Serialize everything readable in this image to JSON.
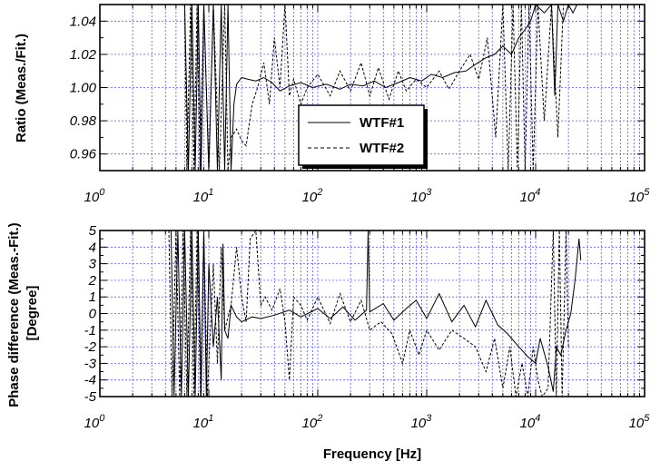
{
  "chart_data": [
    {
      "type": "line",
      "id": "ratio",
      "ylabel": "Ratio (Meas./Fit.)",
      "xlabel": "",
      "xscale": "log",
      "xlim": [
        1,
        100000
      ],
      "ylim": [
        0.95,
        1.05
      ],
      "yticks": [
        "0.96",
        "0.98",
        "1.00",
        "1.02",
        "1.04"
      ],
      "xticks": [
        {
          "base": "10",
          "exp": "0"
        },
        {
          "base": "10",
          "exp": "1"
        },
        {
          "base": "10",
          "exp": "2"
        },
        {
          "base": "10",
          "exp": "3"
        },
        {
          "base": "10",
          "exp": "4"
        },
        {
          "base": "10",
          "exp": "5"
        }
      ],
      "grid": true,
      "legend": {
        "placement": "bottom-center",
        "entries": [
          "WTF#1",
          "WTF#2"
        ]
      },
      "series": [
        {
          "name": "WTF#1",
          "style": "solid",
          "points": [
            [
              6,
              1.05
            ],
            [
              6.5,
              0.95
            ],
            [
              7,
              1.05
            ],
            [
              7.5,
              0.95
            ],
            [
              8,
              1.05
            ],
            [
              8.5,
              0.95
            ],
            [
              9,
              1.05
            ],
            [
              10,
              0.95
            ],
            [
              11,
              1.05
            ],
            [
              12,
              0.95
            ],
            [
              13,
              1.05
            ],
            [
              14,
              0.95
            ],
            [
              15,
              1.05
            ],
            [
              16,
              0.95
            ],
            [
              17,
              0.99
            ],
            [
              18,
              1.002
            ],
            [
              20,
              1.006
            ],
            [
              23,
              1.005
            ],
            [
              27,
              1.004
            ],
            [
              32,
              1.006
            ],
            [
              38,
              1.003
            ],
            [
              45,
              0.998
            ],
            [
              55,
              1.001
            ],
            [
              70,
              1.003
            ],
            [
              90,
              1.0
            ],
            [
              120,
              1.002
            ],
            [
              160,
              0.999
            ],
            [
              200,
              1.002
            ],
            [
              260,
              1.001
            ],
            [
              330,
              1.004
            ],
            [
              420,
              1.0
            ],
            [
              550,
              1.003
            ],
            [
              700,
              1.006
            ],
            [
              900,
              1.004
            ],
            [
              1100,
              1.008
            ],
            [
              1400,
              1.006
            ],
            [
              1800,
              1.009
            ],
            [
              2300,
              1.01
            ],
            [
              2800,
              1.014
            ],
            [
              3500,
              1.018
            ],
            [
              4200,
              1.02
            ],
            [
              5000,
              1.025
            ],
            [
              6000,
              1.02
            ],
            [
              7000,
              1.03
            ],
            [
              8000,
              1.035
            ],
            [
              9000,
              1.04
            ],
            [
              10000,
              1.05
            ],
            [
              12000,
              1.045
            ],
            [
              14000,
              1.05
            ],
            [
              15000,
              0.995
            ],
            [
              16000,
              1.05
            ],
            [
              18000,
              1.04
            ],
            [
              20000,
              1.05
            ],
            [
              22000,
              1.045
            ],
            [
              24000,
              1.05
            ]
          ]
        },
        {
          "name": "WTF#2",
          "style": "dashed",
          "points": [
            [
              6,
              1.05
            ],
            [
              6.3,
              0.95
            ],
            [
              6.8,
              1.05
            ],
            [
              7.3,
              0.95
            ],
            [
              7.8,
              1.05
            ],
            [
              8.3,
              0.95
            ],
            [
              9,
              1.05
            ],
            [
              10,
              0.95
            ],
            [
              11,
              1.05
            ],
            [
              12.5,
              0.95
            ],
            [
              14,
              1.05
            ],
            [
              15,
              0.95
            ],
            [
              16,
              0.97
            ],
            [
              18,
              0.975
            ],
            [
              20,
              0.968
            ],
            [
              22,
              0.965
            ],
            [
              25,
              0.99
            ],
            [
              28,
              1.0
            ],
            [
              32,
              1.015
            ],
            [
              36,
              0.99
            ],
            [
              40,
              1.03
            ],
            [
              45,
              1.0
            ],
            [
              50,
              1.05
            ],
            [
              55,
              0.995
            ],
            [
              60,
              1.005
            ],
            [
              70,
              0.99
            ],
            [
              80,
              1.0
            ],
            [
              100,
              1.008
            ],
            [
              130,
              0.995
            ],
            [
              160,
              1.01
            ],
            [
              200,
              0.998
            ],
            [
              250,
              1.015
            ],
            [
              300,
              0.995
            ],
            [
              360,
              1.012
            ],
            [
              450,
              0.993
            ],
            [
              550,
              1.01
            ],
            [
              650,
              0.998
            ],
            [
              800,
              1.005
            ],
            [
              1000,
              1.0
            ],
            [
              1300,
              1.01
            ],
            [
              1600,
              0.999
            ],
            [
              2000,
              1.01
            ],
            [
              2500,
              1.02
            ],
            [
              3000,
              1.005
            ],
            [
              3600,
              1.03
            ],
            [
              4300,
              0.97
            ],
            [
              5000,
              1.05
            ],
            [
              5600,
              0.95
            ],
            [
              6200,
              1.05
            ],
            [
              6800,
              0.95
            ],
            [
              7400,
              1.05
            ],
            [
              8000,
              0.95
            ],
            [
              8700,
              1.05
            ],
            [
              9500,
              0.95
            ],
            [
              10500,
              1.05
            ],
            [
              12000,
              0.98
            ],
            [
              14000,
              1.05
            ],
            [
              16000,
              0.97
            ],
            [
              18000,
              1.05
            ]
          ]
        }
      ]
    },
    {
      "type": "line",
      "id": "phase",
      "ylabel": "Phase difference (Meas.-Fit.) [Degree]",
      "xlabel": "Frequency [Hz]",
      "xscale": "log",
      "xlim": [
        1,
        100000
      ],
      "ylim": [
        -5,
        5
      ],
      "yticks": [
        "-5",
        "-4",
        "-3",
        "-2",
        "-1",
        "0",
        "1",
        "2",
        "3",
        "4",
        "5"
      ],
      "xticks": [
        {
          "base": "10",
          "exp": "0"
        },
        {
          "base": "10",
          "exp": "1"
        },
        {
          "base": "10",
          "exp": "2"
        },
        {
          "base": "10",
          "exp": "3"
        },
        {
          "base": "10",
          "exp": "4"
        },
        {
          "base": "10",
          "exp": "5"
        }
      ],
      "grid": true,
      "series": [
        {
          "name": "WTF#1",
          "style": "solid",
          "points": [
            [
              4.5,
              5
            ],
            [
              4.8,
              -5
            ],
            [
              5.2,
              5
            ],
            [
              5.6,
              -5
            ],
            [
              6,
              5
            ],
            [
              6.5,
              -5
            ],
            [
              7,
              5
            ],
            [
              7.5,
              -5
            ],
            [
              8,
              5
            ],
            [
              8.5,
              -5
            ],
            [
              9,
              5
            ],
            [
              9.5,
              -5
            ],
            [
              10,
              3
            ],
            [
              11,
              -2
            ],
            [
              12,
              1
            ],
            [
              13,
              -4
            ],
            [
              13.5,
              4.2
            ],
            [
              14,
              -1
            ],
            [
              15,
              -1.5
            ],
            [
              16,
              0.5
            ],
            [
              18,
              -0.2
            ],
            [
              20,
              -0.5
            ],
            [
              25,
              -0.2
            ],
            [
              30,
              -0.3
            ],
            [
              40,
              -0.1
            ],
            [
              55,
              0.2
            ],
            [
              70,
              -0.2
            ],
            [
              100,
              0.3
            ],
            [
              130,
              -0.3
            ],
            [
              170,
              0.4
            ],
            [
              220,
              -0.4
            ],
            [
              280,
              0.2
            ],
            [
              290,
              5
            ],
            [
              300,
              0.1
            ],
            [
              400,
              0.6
            ],
            [
              500,
              -0.4
            ],
            [
              650,
              0.3
            ],
            [
              800,
              0.8
            ],
            [
              1000,
              -0.3
            ],
            [
              1300,
              1.2
            ],
            [
              1700,
              -0.5
            ],
            [
              2200,
              0.5
            ],
            [
              2800,
              -0.8
            ],
            [
              3500,
              0.8
            ],
            [
              4500,
              -0.7
            ],
            [
              5500,
              -1.2
            ],
            [
              7000,
              -2
            ],
            [
              8500,
              -2.6
            ],
            [
              10000,
              -3
            ],
            [
              11000,
              -1.5
            ],
            [
              13000,
              -3.2
            ],
            [
              14500,
              -4.7
            ],
            [
              15500,
              -2
            ],
            [
              17000,
              -2.5
            ],
            [
              19000,
              -1
            ],
            [
              21000,
              0
            ],
            [
              23000,
              2
            ],
            [
              25000,
              4.5
            ],
            [
              26000,
              3.2
            ]
          ]
        },
        {
          "name": "WTF#2",
          "style": "dashed",
          "points": [
            [
              4.3,
              5
            ],
            [
              4.6,
              -5
            ],
            [
              5,
              5
            ],
            [
              5.4,
              -5
            ],
            [
              5.8,
              5
            ],
            [
              6.3,
              -5
            ],
            [
              6.8,
              5
            ],
            [
              7.3,
              -5
            ],
            [
              7.8,
              5
            ],
            [
              8.4,
              -5
            ],
            [
              9,
              5
            ],
            [
              9.7,
              -5
            ],
            [
              11,
              3
            ],
            [
              12,
              -3
            ],
            [
              13,
              4
            ],
            [
              14,
              -1
            ],
            [
              16,
              0.5
            ],
            [
              18,
              4
            ],
            [
              20,
              1
            ],
            [
              22,
              -0.5
            ],
            [
              24,
              4.5
            ],
            [
              27,
              5
            ],
            [
              30,
              0.5
            ],
            [
              33,
              1
            ],
            [
              38,
              0.2
            ],
            [
              45,
              1.5
            ],
            [
              50,
              -0.5
            ],
            [
              55,
              -4
            ],
            [
              60,
              1
            ],
            [
              70,
              0.5
            ],
            [
              80,
              -0.4
            ],
            [
              100,
              1
            ],
            [
              130,
              -0.6
            ],
            [
              160,
              1.2
            ],
            [
              200,
              -0.5
            ],
            [
              250,
              0.8
            ],
            [
              300,
              -1
            ],
            [
              380,
              -0.5
            ],
            [
              480,
              -1.2
            ],
            [
              600,
              -3
            ],
            [
              700,
              -1
            ],
            [
              850,
              -2.5
            ],
            [
              1000,
              -1
            ],
            [
              1300,
              -2.2
            ],
            [
              1700,
              -1
            ],
            [
              2200,
              -1.5
            ],
            [
              2800,
              -2
            ],
            [
              3500,
              -3.5
            ],
            [
              4200,
              -1.5
            ],
            [
              5000,
              -4.5
            ],
            [
              5800,
              -2
            ],
            [
              6600,
              -5
            ],
            [
              7500,
              -3
            ],
            [
              8500,
              -5
            ],
            [
              9500,
              -2
            ],
            [
              10500,
              -4
            ],
            [
              11500,
              -5
            ],
            [
              13000,
              -4.5
            ],
            [
              14500,
              5
            ],
            [
              15500,
              -5
            ],
            [
              16500,
              5
            ],
            [
              17500,
              -5
            ],
            [
              19000,
              5
            ],
            [
              20000,
              -2
            ]
          ]
        }
      ]
    }
  ]
}
